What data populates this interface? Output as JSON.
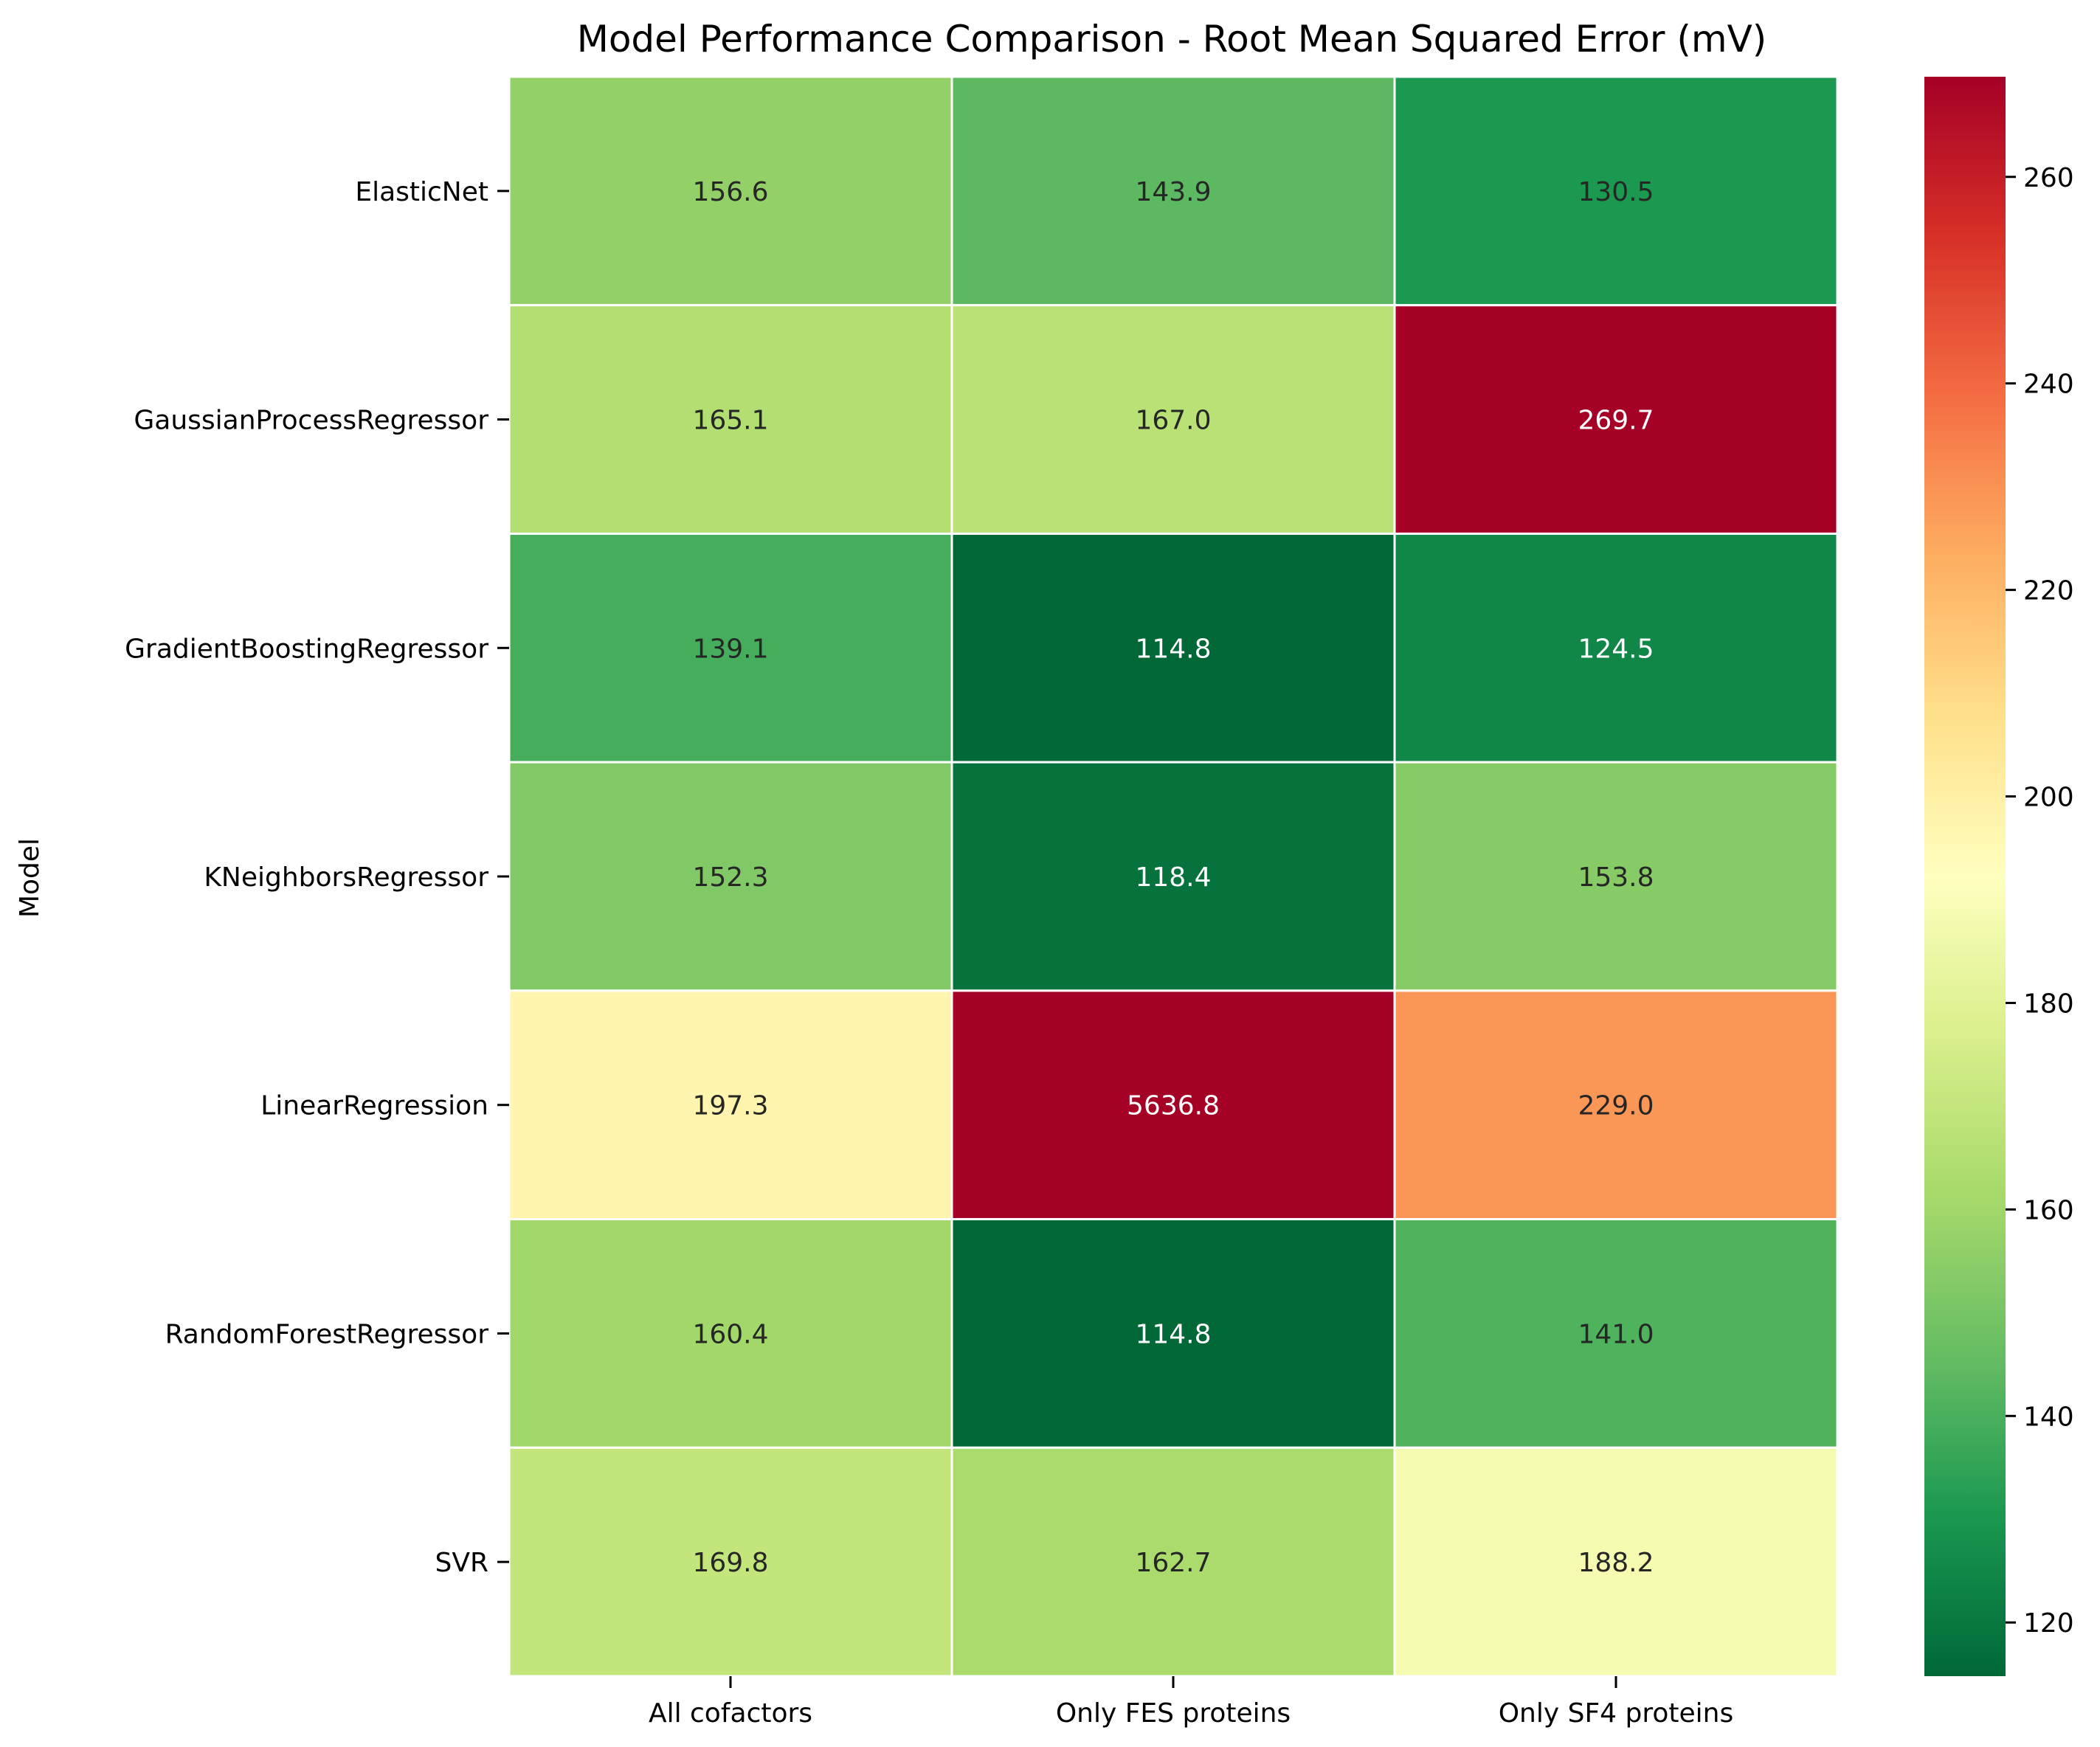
{
  "chart_data": {
    "type": "heatmap",
    "title": "Model Performance Comparison - Root Mean Squared Error (mV)",
    "xlabel": "",
    "ylabel": "Model",
    "columns": [
      "All cofactors",
      "Only FES proteins",
      "Only SF4 proteins"
    ],
    "rows": [
      "ElasticNet",
      "GaussianProcessRegressor",
      "GradientBoostingRegressor",
      "KNeighborsRegressor",
      "LinearRegression",
      "RandomForestRegressor",
      "SVR"
    ],
    "values": [
      [
        156.6,
        143.9,
        130.5
      ],
      [
        165.1,
        167.0,
        269.7
      ],
      [
        139.1,
        114.8,
        124.5
      ],
      [
        152.3,
        118.4,
        153.8
      ],
      [
        197.3,
        5636.8,
        229.0
      ],
      [
        160.4,
        114.8,
        141.0
      ],
      [
        169.8,
        162.7,
        188.2
      ]
    ],
    "value_format": "0.1",
    "colormap": "RdYlGn_r",
    "color_range": [
      114.8,
      269.7
    ],
    "colorbar_ticks": [
      120,
      140,
      160,
      180,
      200,
      220,
      240,
      260
    ],
    "colorbar_tick_labels": [
      "120",
      "140",
      "160",
      "180",
      "200",
      "220",
      "240",
      "260"
    ],
    "grid_line_color": "#ffffff",
    "legend_placement": "right"
  }
}
